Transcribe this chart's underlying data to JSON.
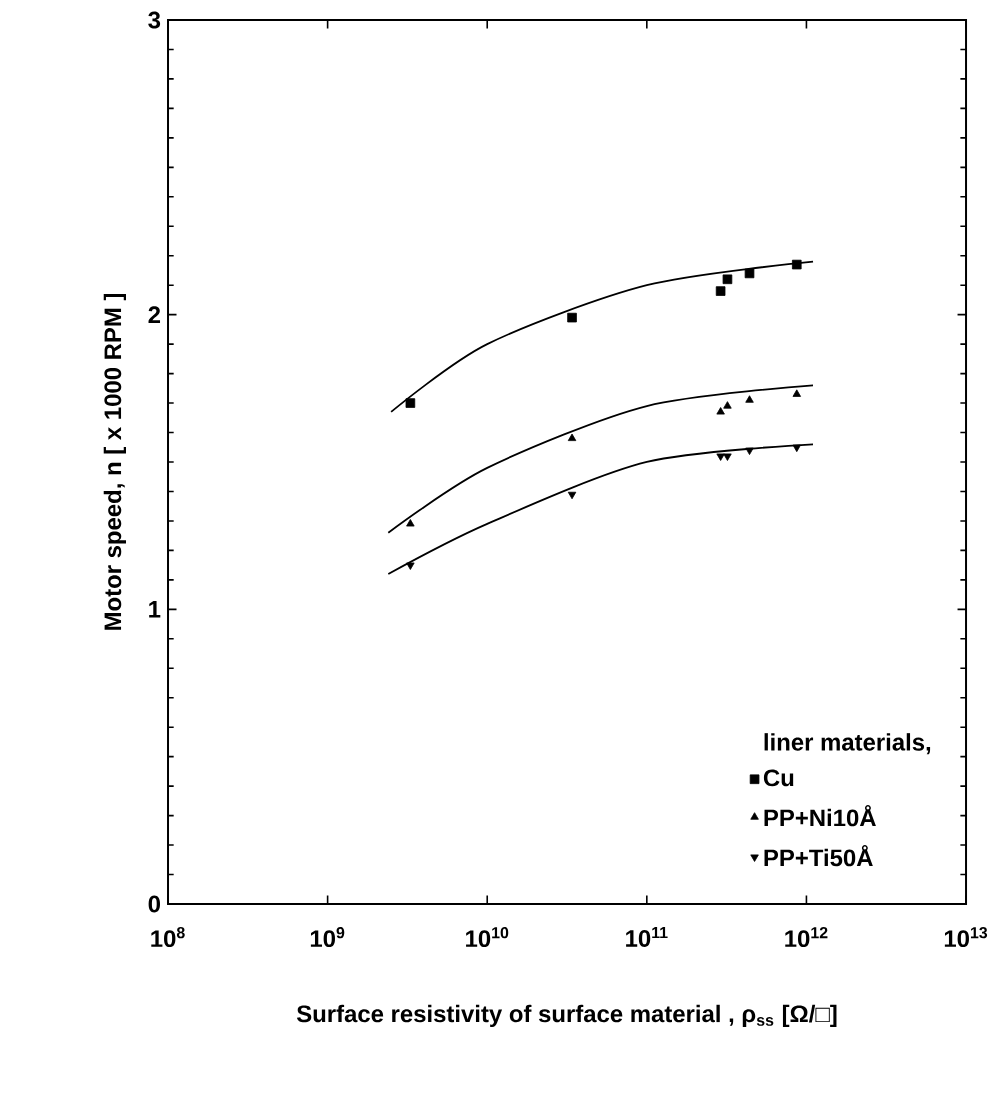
{
  "chart_data": {
    "type": "scatter",
    "xlabel": "Surface resistivity of surface material , ρ$_{ss}$ [Ω/□]",
    "ylabel": "Motor speed, n  [ x 1000 RPM ]",
    "legend_title": "liner materials,",
    "log": "x",
    "xlim": [
      100000000,
      10000000000000
    ],
    "ylim": [
      0,
      3
    ],
    "xticks": [
      {
        "value": 100000000,
        "label": "10$^{8}$"
      },
      {
        "value": 1000000000,
        "label": "10$^{9}$"
      },
      {
        "value": 10000000000,
        "label": "10$^{10}$"
      },
      {
        "value": 100000000000,
        "label": "10$^{11}$"
      },
      {
        "value": 1000000000000,
        "label": "10$^{12}$"
      },
      {
        "value": 10000000000000,
        "label": "10$^{13}$"
      }
    ],
    "yticks": [
      0,
      1,
      2,
      3
    ],
    "legend": "bottom right",
    "series": [
      {
        "name": "Cu",
        "color": "#000000",
        "marker": "square",
        "x": [
          3300000000,
          34000000000,
          290000000000,
          320000000000,
          440000000000,
          870000000000
        ],
        "values": [
          1.7,
          1.99,
          2.08,
          2.12,
          2.14,
          2.17
        ]
      },
      {
        "name": "PP+Ni10Å",
        "color": "#000000",
        "marker": "triangle",
        "x": [
          3300000000,
          34000000000,
          290000000000,
          320000000000,
          440000000000,
          870000000000
        ],
        "values": [
          1.29,
          1.58,
          1.67,
          1.69,
          1.71,
          1.73
        ]
      },
      {
        "name": "PP+Ti50Å",
        "color": "#000000",
        "marker": "triangle down",
        "x": [
          3300000000,
          34000000000,
          290000000000,
          320000000000,
          440000000000,
          870000000000
        ],
        "values": [
          1.15,
          1.39,
          1.52,
          1.52,
          1.54,
          1.55
        ]
      },
      {
        "type": "line",
        "color": "#000000",
        "marker": "none",
        "x": [
          2500000000,
          10000000000,
          100000000000,
          1100000000000
        ],
        "values": [
          1.67,
          1.9,
          2.1,
          2.18
        ]
      },
      {
        "type": "line",
        "color": "#000000",
        "marker": "none",
        "x": [
          2400000000,
          10000000000,
          100000000000,
          1100000000000
        ],
        "values": [
          1.26,
          1.48,
          1.69,
          1.76
        ]
      },
      {
        "type": "line",
        "color": "#000000",
        "marker": "none",
        "x": [
          2400000000,
          10000000000,
          100000000000,
          1100000000000
        ],
        "values": [
          1.12,
          1.29,
          1.5,
          1.56
        ]
      }
    ]
  }
}
